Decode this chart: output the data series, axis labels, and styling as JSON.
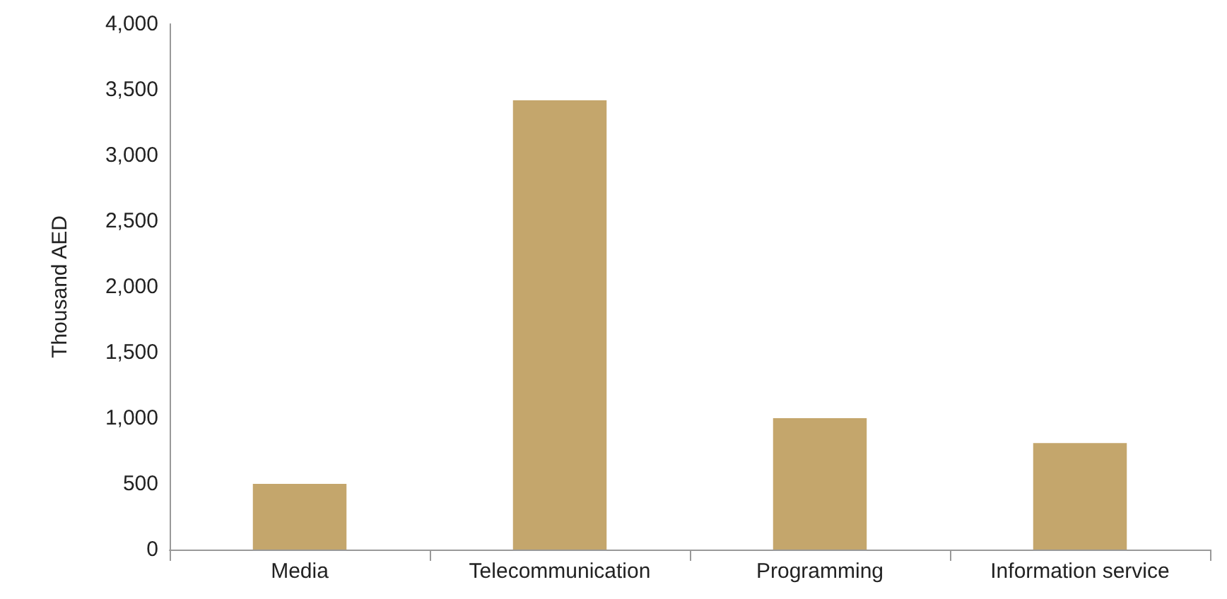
{
  "chart_data": {
    "type": "bar",
    "ylabel": "Thousand AED",
    "categories": [
      "Media",
      "Telecommunication",
      "Programming",
      "Information service"
    ],
    "values": [
      500,
      3420,
      1000,
      810
    ],
    "color": "#c4a66c",
    "ylim": [
      0,
      4000
    ],
    "yticks": [
      0,
      500,
      {
        "value": 1000,
        "label": "1,000"
      },
      {
        "value": 1500,
        "label": "1,500"
      },
      {
        "value": 2000,
        "label": "2,000"
      },
      {
        "value": 2500,
        "label": "2,500"
      },
      {
        "value": 3000,
        "label": "3,000"
      },
      {
        "value": 3500,
        "label": "3,500"
      },
      {
        "value": 4000,
        "label": "4,000"
      }
    ],
    "grid": false
  }
}
